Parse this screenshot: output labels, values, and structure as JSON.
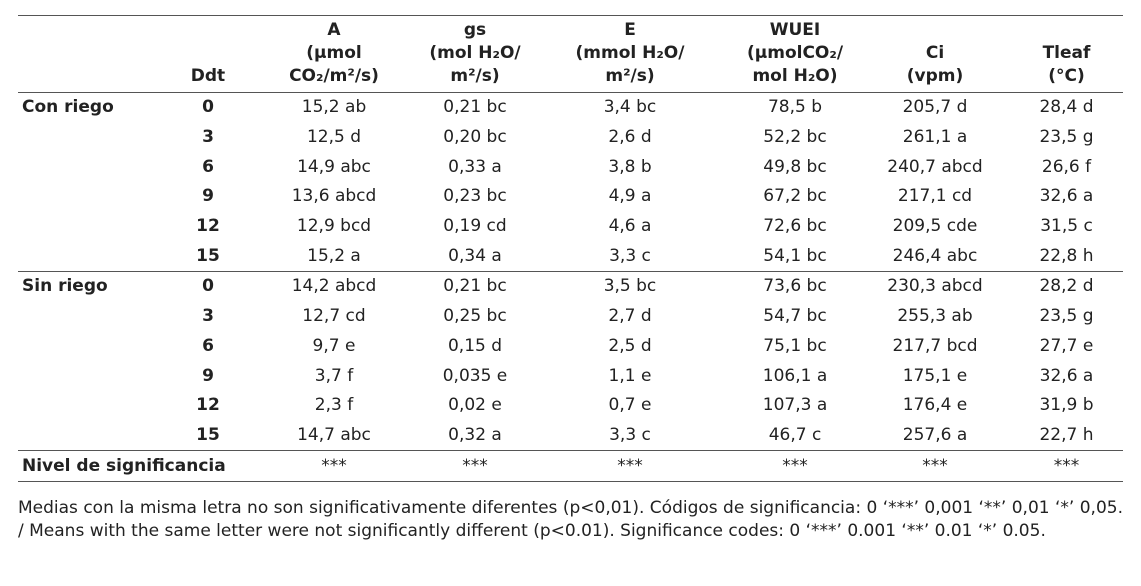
{
  "table": {
    "header": [
      {
        "lines": [
          "Ddt"
        ]
      },
      {
        "lines": [
          "A",
          "(µmol",
          "CO₂/m²/s)"
        ]
      },
      {
        "lines": [
          "gs",
          "(mol H₂O/",
          "m²/s)"
        ]
      },
      {
        "lines": [
          "E",
          "(mmol H₂O/",
          "m²/s)"
        ]
      },
      {
        "lines": [
          "WUEI",
          "(µmolCO₂/",
          "mol H₂O)"
        ]
      },
      {
        "lines": [
          "Ci",
          "(vpm)"
        ]
      },
      {
        "lines": [
          "Tleaf",
          "(°C)"
        ]
      }
    ],
    "groups": [
      {
        "label": "Con riego",
        "rows": [
          [
            "0",
            "15,2 ab",
            "0,21 bc",
            "3,4 bc",
            "78,5 b",
            "205,7 d",
            "28,4 d"
          ],
          [
            "3",
            "12,5 d",
            "0,20 bc",
            "2,6 d",
            "52,2 bc",
            "261,1 a",
            "23,5 g"
          ],
          [
            "6",
            "14,9 abc",
            "0,33 a",
            "3,8 b",
            "49,8 bc",
            "240,7 abcd",
            "26,6 f"
          ],
          [
            "9",
            "13,6 abcd",
            "0,23 bc",
            "4,9 a",
            "67,2 bc",
            "217,1 cd",
            "32,6 a"
          ],
          [
            "12",
            "12,9 bcd",
            "0,19 cd",
            "4,6 a",
            "72,6 bc",
            "209,5 cde",
            "31,5 c"
          ],
          [
            "15",
            "15,2 a",
            "0,34 a",
            "3,3 c",
            "54,1 bc",
            "246,4 abc",
            "22,8 h"
          ]
        ]
      },
      {
        "label": "Sin riego",
        "rows": [
          [
            "0",
            "14,2 abcd",
            "0,21 bc",
            "3,5 bc",
            "73,6 bc",
            "230,3 abcd",
            "28,2 d"
          ],
          [
            "3",
            "12,7 cd",
            "0,25 bc",
            "2,7 d",
            "54,7 bc",
            "255,3 ab",
            "23,5 g"
          ],
          [
            "6",
            "9,7 e",
            "0,15 d",
            "2,5 d",
            "75,1 bc",
            "217,7 bcd",
            "27,7 e"
          ],
          [
            "9",
            "3,7 f",
            "0,035 e",
            "1,1 e",
            "106,1 a",
            "175,1 e",
            "32,6 a"
          ],
          [
            "12",
            "2,3 f",
            "0,02 e",
            "0,7 e",
            "107,3 a",
            "176,4 e",
            "31,9 b"
          ],
          [
            "15",
            "14,7 abc",
            "0,32 a",
            "3,3 c",
            "46,7 c",
            "257,6 a",
            "22,7 h"
          ]
        ]
      }
    ],
    "significance": {
      "label": "Nivel de significancia",
      "values": [
        "***",
        "***",
        "***",
        "***",
        "***",
        "***"
      ]
    }
  },
  "note": "Medias con la misma letra no son significativamente diferentes (p<0,01). Códigos de significancia: 0 ‘***’ 0,001 ‘**’ 0,01 ‘*’ 0,05. / Means with the same letter were not significantly different (p<0.01). Significance codes: 0 ‘***’ 0.001 ‘**’ 0.01 ‘*’ 0.05."
}
